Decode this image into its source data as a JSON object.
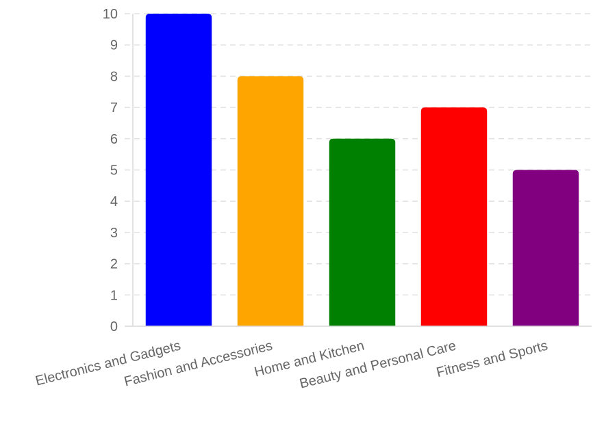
{
  "chart_data": {
    "type": "bar",
    "title": "",
    "xlabel": "",
    "ylabel": "",
    "ylim": [
      0,
      10
    ],
    "yticks": [
      0,
      1,
      2,
      3,
      4,
      5,
      6,
      7,
      8,
      9,
      10
    ],
    "grid": true,
    "categories": [
      "Electronics and Gadgets",
      "Fashion and Accessories",
      "Home and Kitchen",
      "Beauty and Personal Care",
      "Fitness and Sports"
    ],
    "values": [
      10,
      8,
      6,
      7,
      5
    ],
    "colors": [
      "#0000ff",
      "#ffa500",
      "#008000",
      "#ff0000",
      "#800080"
    ],
    "gridline_color": "#e0e0e0",
    "axis_color": "#d8d8d8",
    "tick_label_color": "#666666"
  }
}
